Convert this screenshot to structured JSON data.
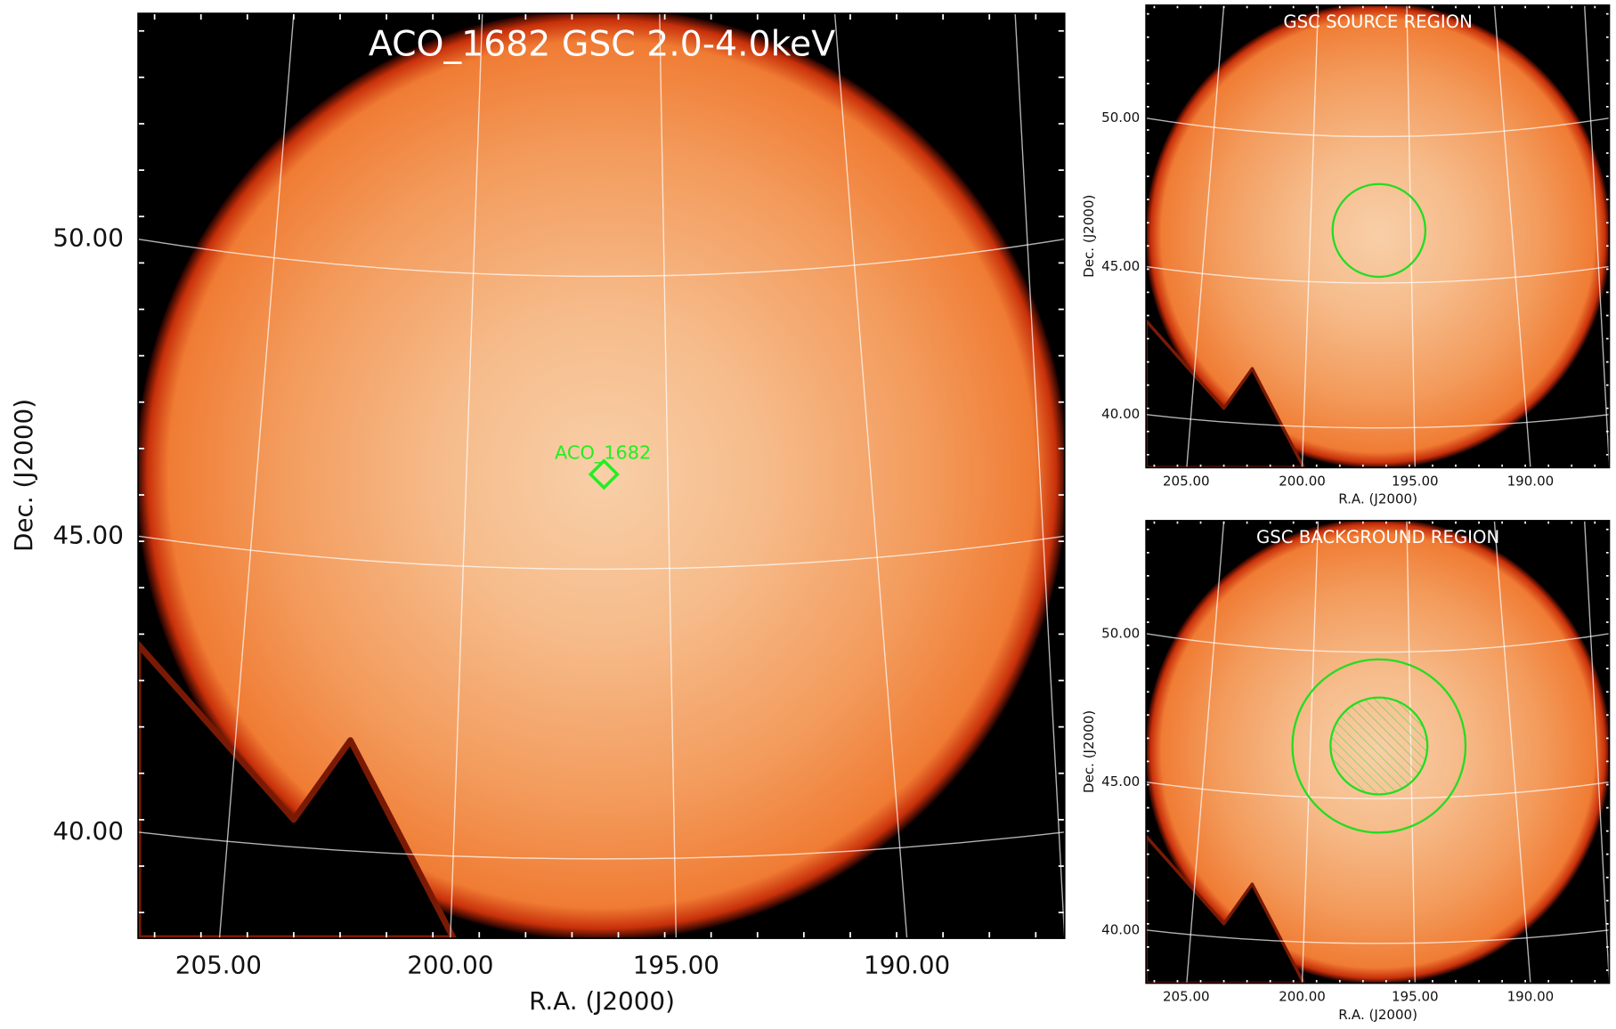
{
  "panels": [
    {
      "title": "ACO_1682 GSC 2.0-4.0keV",
      "xlabel": "R.A. (J2000)",
      "ylabel": "Dec. (J2000)",
      "xticks": [
        "205.00",
        "200.00",
        "195.00",
        "190.00"
      ],
      "yticks": [
        "50.00",
        "45.00",
        "40.00"
      ],
      "source_label": "ACO_1682"
    },
    {
      "title": "GSC SOURCE REGION",
      "xlabel": "R.A. (J2000)",
      "ylabel": "Dec. (J2000)",
      "xticks": [
        "205.00",
        "200.00",
        "195.00",
        "190.00"
      ],
      "yticks": [
        "50.00",
        "45.00",
        "40.00"
      ]
    },
    {
      "title": "GSC BACKGROUND REGION",
      "xlabel": "R.A. (J2000)",
      "ylabel": "Dec. (J2000)",
      "xticks": [
        "205.00",
        "200.00",
        "195.00",
        "190.00"
      ],
      "yticks": [
        "50.00",
        "45.00",
        "40.00"
      ]
    }
  ]
}
